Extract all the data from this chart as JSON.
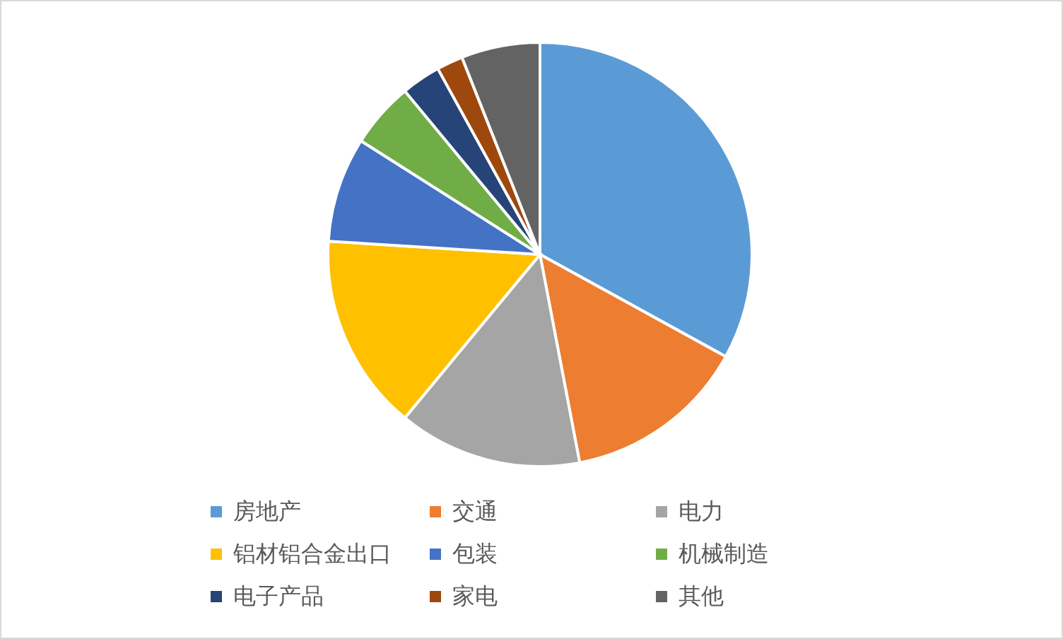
{
  "chart_data": {
    "type": "pie",
    "categories": [
      "房地产",
      "交通",
      "电力",
      "铝材铝合金出口",
      "包装",
      "机械制造",
      "电子产品",
      "家电",
      "其他"
    ],
    "values": [
      33,
      14,
      14,
      15,
      8,
      5,
      3,
      2,
      6
    ],
    "colors": [
      "#5b9bd5",
      "#ed7d31",
      "#a5a5a5",
      "#ffc000",
      "#4472c4",
      "#70ad47",
      "#264478",
      "#9e480e",
      "#636363"
    ],
    "legend": "bottom"
  }
}
